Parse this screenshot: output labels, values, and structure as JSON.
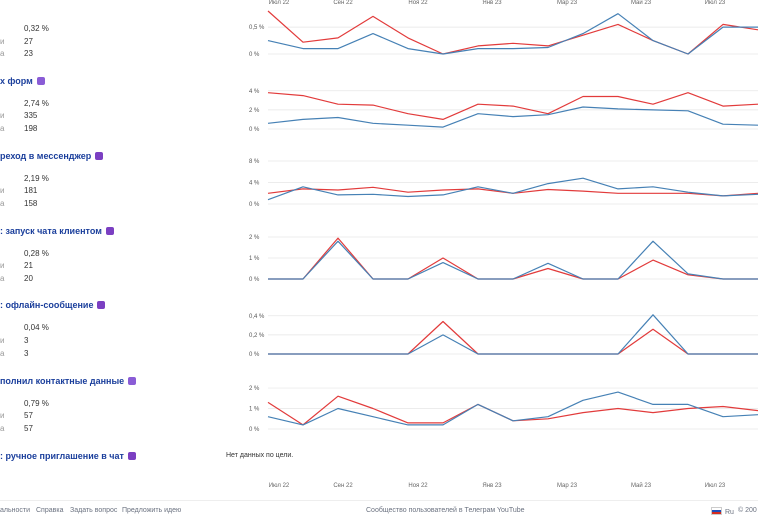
{
  "colors": {
    "red": "#e23b3b",
    "blue": "#4681b5",
    "grid": "#e6e6e6",
    "title": "#1b3f9c",
    "badge": "#7b3fc2"
  },
  "top_ticks": [
    "Июл 22",
    "Сен 22",
    "Ноя 22",
    "Янв 23",
    "Мар 23",
    "Май 23",
    "Июл 23"
  ],
  "bottom_ticks": [
    "Июл 22",
    "Сен 22",
    "Ноя 22",
    "Янв 23",
    "Мар 23",
    "Май 23",
    "Июл 23"
  ],
  "goals": [
    {
      "title": "",
      "badge_icon": "",
      "stats": [
        {
          "label": "",
          "value": "0,32 %"
        },
        {
          "label": "и",
          "value": "27"
        },
        {
          "label": "а",
          "value": "23"
        }
      ]
    },
    {
      "title": "х форм",
      "badge_icon": "form-icon",
      "stats": [
        {
          "label": "",
          "value": "2,74 %"
        },
        {
          "label": "и",
          "value": "335"
        },
        {
          "label": "а",
          "value": "198"
        }
      ]
    },
    {
      "title": "реход в мессенджер",
      "badge_icon": "chat-icon",
      "stats": [
        {
          "label": "",
          "value": "2,19 %"
        },
        {
          "label": "и",
          "value": "181"
        },
        {
          "label": "а",
          "value": "158"
        }
      ]
    },
    {
      "title": ": запуск чата клиентом",
      "badge_icon": "alert-icon",
      "stats": [
        {
          "label": "",
          "value": "0,28 %"
        },
        {
          "label": "и",
          "value": "21"
        },
        {
          "label": "а",
          "value": "20"
        }
      ]
    },
    {
      "title": ": офлайн-сообщение",
      "badge_icon": "alert-icon",
      "stats": [
        {
          "label": "",
          "value": "0,04 %"
        },
        {
          "label": "и",
          "value": "3"
        },
        {
          "label": "а",
          "value": "3"
        }
      ]
    },
    {
      "title": "полнил контактные данные",
      "badge_icon": "mail-icon",
      "stats": [
        {
          "label": "",
          "value": "0,79 %"
        },
        {
          "label": "и",
          "value": "57"
        },
        {
          "label": "а",
          "value": "57"
        }
      ]
    },
    {
      "title": ": ручное приглашение в чат",
      "badge_icon": "alert-icon",
      "stats": []
    }
  ],
  "no_data_text": "Нет данных по цели.",
  "footer": {
    "links_left": [
      "альности",
      "Справка",
      "Задать вопрос",
      "Предложить идею"
    ],
    "links_mid": [
      "Сообщество пользователей в Телеграм",
      "YouTube"
    ],
    "lang": "Ru",
    "copyright": "© 200"
  },
  "chart_data": [
    {
      "type": "line",
      "x": [
        "Июн 22",
        "Июл 22",
        "Авг 22",
        "Сен 22",
        "Окт 22",
        "Ноя 22",
        "Дек 22",
        "Янв 23",
        "Фев 23",
        "Мар 23",
        "Апр 23",
        "Май 23",
        "Июн 23",
        "Июл 23",
        "Авг 23"
      ],
      "yticks": [
        "0 %",
        "0,5 %"
      ],
      "ylim": [
        0,
        0.8
      ],
      "series": [
        {
          "color": "red",
          "values": [
            0.8,
            0.22,
            0.3,
            0.7,
            0.3,
            0.0,
            0.15,
            0.2,
            0.15,
            0.35,
            0.55,
            0.25,
            0.0,
            0.55,
            0.45
          ]
        },
        {
          "color": "blue",
          "values": [
            0.25,
            0.1,
            0.1,
            0.38,
            0.1,
            0.0,
            0.1,
            0.1,
            0.12,
            0.38,
            0.75,
            0.25,
            0.0,
            0.5,
            0.5
          ]
        }
      ]
    },
    {
      "type": "line",
      "x": [
        "Июн 22",
        "Июл 22",
        "Авг 22",
        "Сен 22",
        "Окт 22",
        "Ноя 22",
        "Дек 22",
        "Янв 23",
        "Фев 23",
        "Мар 23",
        "Апр 23",
        "Май 23",
        "Июн 23",
        "Июл 23",
        "Авг 23"
      ],
      "yticks": [
        "0 %",
        "2 %",
        "4 %"
      ],
      "ylim": [
        0,
        4.5
      ],
      "series": [
        {
          "color": "red",
          "values": [
            3.8,
            3.5,
            2.6,
            2.5,
            1.6,
            1.0,
            2.6,
            2.4,
            1.6,
            3.4,
            3.4,
            2.6,
            3.8,
            2.4,
            2.6
          ]
        },
        {
          "color": "blue",
          "values": [
            0.6,
            1.0,
            1.2,
            0.6,
            0.4,
            0.2,
            1.6,
            1.3,
            1.5,
            2.3,
            2.1,
            2.0,
            1.9,
            0.5,
            0.4
          ]
        }
      ]
    },
    {
      "type": "line",
      "x": [
        "Июн 22",
        "Июл 22",
        "Авг 22",
        "Сен 22",
        "Окт 22",
        "Ноя 22",
        "Дек 22",
        "Янв 23",
        "Фев 23",
        "Мар 23",
        "Апр 23",
        "Май 23",
        "Июн 23",
        "Июл 23",
        "Авг 23"
      ],
      "yticks": [
        "0 %",
        "4 %",
        "8 %"
      ],
      "ylim": [
        0,
        8
      ],
      "series": [
        {
          "color": "red",
          "values": [
            2.0,
            2.8,
            2.6,
            3.1,
            2.2,
            2.6,
            2.8,
            2.0,
            2.7,
            2.4,
            2.0,
            2.0,
            2.0,
            1.5,
            2.0
          ]
        },
        {
          "color": "blue",
          "values": [
            0.8,
            3.2,
            1.7,
            1.8,
            1.4,
            1.7,
            3.2,
            2.0,
            3.8,
            4.8,
            2.8,
            3.2,
            2.2,
            1.5,
            1.8
          ]
        }
      ]
    },
    {
      "type": "line",
      "x": [
        "Июн 22",
        "Июл 22",
        "Авг 22",
        "Сен 22",
        "Окт 22",
        "Ноя 22",
        "Дек 22",
        "Янв 23",
        "Фев 23",
        "Мар 23",
        "Апр 23",
        "Май 23",
        "Июн 23",
        "Июл 23",
        "Авг 23"
      ],
      "yticks": [
        "0 %",
        "1 %",
        "2 %"
      ],
      "ylim": [
        0,
        2
      ],
      "series": [
        {
          "color": "red",
          "values": [
            0,
            0,
            1.95,
            0,
            0,
            1.0,
            0,
            0,
            0.5,
            0,
            0,
            0.9,
            0.2,
            0,
            0
          ]
        },
        {
          "color": "blue",
          "values": [
            0,
            0,
            1.8,
            0,
            0,
            0.78,
            0,
            0,
            0.75,
            0,
            0,
            1.8,
            0.25,
            0,
            0
          ]
        }
      ]
    },
    {
      "type": "line",
      "x": [
        "Июн 22",
        "Июл 22",
        "Авг 22",
        "Сен 22",
        "Окт 22",
        "Ноя 22",
        "Дек 22",
        "Янв 23",
        "Фев 23",
        "Мар 23",
        "Апр 23",
        "Май 23",
        "Июн 23",
        "Июл 23",
        "Авг 23"
      ],
      "yticks": [
        "0 %",
        "0,2 %",
        "0,4 %"
      ],
      "ylim": [
        0,
        0.45
      ],
      "series": [
        {
          "color": "red",
          "values": [
            0,
            0,
            0,
            0,
            0,
            0.34,
            0,
            0,
            0,
            0,
            0,
            0.26,
            0,
            0,
            0
          ]
        },
        {
          "color": "blue",
          "values": [
            0,
            0,
            0,
            0,
            0,
            0.2,
            0,
            0,
            0,
            0,
            0,
            0.41,
            0,
            0,
            0
          ]
        }
      ]
    },
    {
      "type": "line",
      "x": [
        "Июн 22",
        "Июл 22",
        "Авг 22",
        "Сен 22",
        "Окт 22",
        "Ноя 22",
        "Дек 22",
        "Янв 23",
        "Фев 23",
        "Мар 23",
        "Апр 23",
        "Май 23",
        "Июн 23",
        "Июл 23",
        "Авг 23"
      ],
      "yticks": [
        "0 %",
        "1 %",
        "2 %"
      ],
      "ylim": [
        0,
        2.1
      ],
      "series": [
        {
          "color": "red",
          "values": [
            1.3,
            0.2,
            1.6,
            1.0,
            0.3,
            0.3,
            1.2,
            0.4,
            0.5,
            0.8,
            1.0,
            0.8,
            1.0,
            1.1,
            0.9
          ]
        },
        {
          "color": "blue",
          "values": [
            0.6,
            0.2,
            1.0,
            0.6,
            0.2,
            0.2,
            1.2,
            0.4,
            0.6,
            1.4,
            1.8,
            1.2,
            1.2,
            0.6,
            0.7
          ]
        }
      ]
    }
  ]
}
